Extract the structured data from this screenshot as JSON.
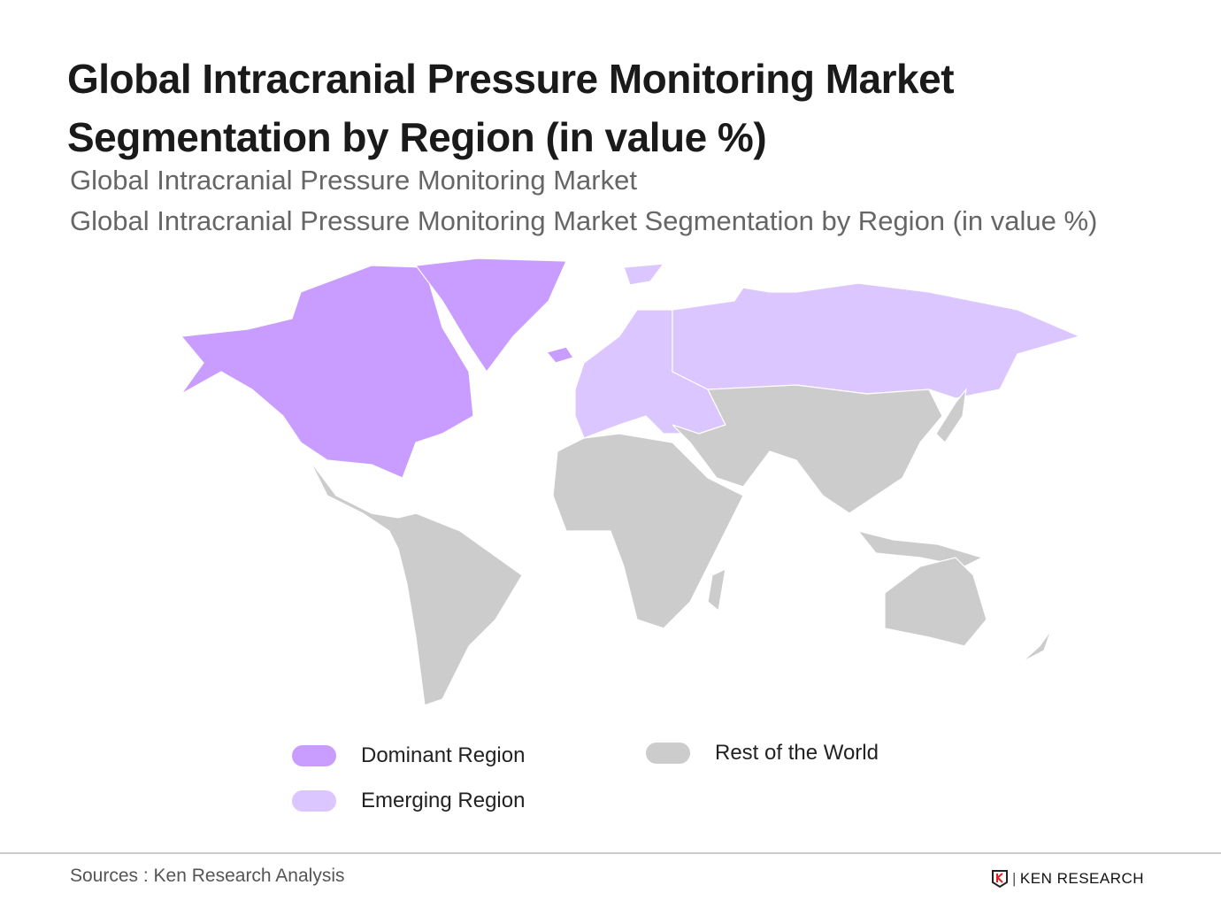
{
  "title": "Global Intracranial Pressure Monitoring Market Segmentation by Region (in value %)",
  "subtitle_1": "Global Intracranial Pressure Monitoring Market",
  "subtitle_2": "Global Intracranial Pressure Monitoring Market Segmentation by Region (in value %)",
  "colors": {
    "dominant": "#c99cff",
    "emerging": "#dcc6ff",
    "rest": "#cccccc"
  },
  "map_regions": {
    "dominant": [
      "North America",
      "Greenland"
    ],
    "emerging": [
      "Europe",
      "Russia"
    ],
    "rest": [
      "Latin America",
      "Africa",
      "Middle East",
      "Asia",
      "Oceania"
    ]
  },
  "legend": [
    {
      "label": "Dominant Region",
      "key": "dominant"
    },
    {
      "label": "Emerging Region",
      "key": "emerging"
    },
    {
      "label": "Rest of the World",
      "key": "rest"
    }
  ],
  "footer": {
    "source": "Sources : Ken Research Analysis",
    "logo": "KEN RESEARCH"
  }
}
